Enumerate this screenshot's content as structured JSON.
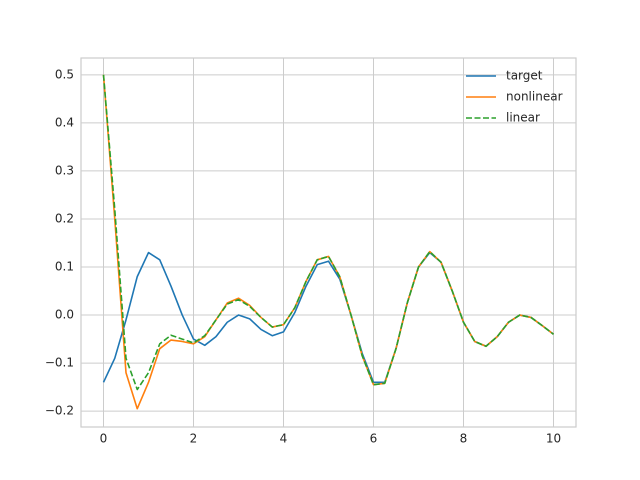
{
  "chart_data": {
    "type": "line",
    "x": [
      0,
      0.25,
      0.5,
      0.75,
      1,
      1.25,
      1.5,
      1.75,
      2,
      2.25,
      2.5,
      2.75,
      3,
      3.25,
      3.5,
      3.75,
      4,
      4.25,
      4.5,
      4.75,
      5,
      5.25,
      5.5,
      5.75,
      6,
      6.25,
      6.5,
      6.75,
      7,
      7.25,
      7.5,
      7.75,
      8,
      8.25,
      8.5,
      8.75,
      9,
      9.25,
      9.5,
      9.75,
      10
    ],
    "series": [
      {
        "name": "target",
        "color": "#1f77b4",
        "dash": false,
        "values": [
          -0.14,
          -0.09,
          -0.01,
          0.08,
          0.13,
          0.115,
          0.06,
          0.0,
          -0.05,
          -0.063,
          -0.045,
          -0.015,
          0.0,
          -0.008,
          -0.03,
          -0.043,
          -0.035,
          0.005,
          0.06,
          0.105,
          0.112,
          0.075,
          0.0,
          -0.08,
          -0.14,
          -0.14,
          -0.07,
          0.025,
          0.1,
          0.13,
          0.11,
          0.05,
          -0.015,
          -0.055,
          -0.065,
          -0.045,
          -0.015,
          0.0,
          -0.005,
          -0.022,
          -0.04
        ]
      },
      {
        "name": "nonlinear",
        "color": "#ff7f0e",
        "dash": false,
        "values": [
          0.5,
          0.2,
          -0.12,
          -0.195,
          -0.14,
          -0.07,
          -0.052,
          -0.055,
          -0.06,
          -0.045,
          -0.01,
          0.025,
          0.035,
          0.02,
          -0.005,
          -0.025,
          -0.02,
          0.015,
          0.07,
          0.115,
          0.122,
          0.08,
          0.0,
          -0.085,
          -0.145,
          -0.142,
          -0.07,
          0.025,
          0.1,
          0.132,
          0.11,
          0.05,
          -0.015,
          -0.055,
          -0.065,
          -0.045,
          -0.015,
          0.0,
          -0.005,
          -0.022,
          -0.04
        ]
      },
      {
        "name": "linear",
        "color": "#2ca02c",
        "dash": true,
        "values": [
          0.5,
          0.22,
          -0.09,
          -0.155,
          -0.12,
          -0.06,
          -0.042,
          -0.05,
          -0.058,
          -0.043,
          -0.01,
          0.023,
          0.032,
          0.018,
          -0.005,
          -0.025,
          -0.02,
          0.015,
          0.07,
          0.115,
          0.122,
          0.08,
          0.0,
          -0.085,
          -0.145,
          -0.142,
          -0.07,
          0.025,
          0.1,
          0.132,
          0.11,
          0.05,
          -0.015,
          -0.055,
          -0.065,
          -0.045,
          -0.015,
          0.0,
          -0.005,
          -0.022,
          -0.04
        ]
      }
    ],
    "xlim": [
      -0.5,
      10.5
    ],
    "ylim": [
      -0.233,
      0.535
    ],
    "xticks": [
      0,
      2,
      4,
      6,
      8,
      10
    ],
    "yticks": [
      {
        "value": -0.2,
        "label": "−0.2"
      },
      {
        "value": -0.1,
        "label": "−0.1"
      },
      {
        "value": 0,
        "label": "0.0"
      },
      0.1,
      0.2,
      0.3,
      0.4,
      0.5
    ],
    "grid": true,
    "legend": "upper right"
  }
}
